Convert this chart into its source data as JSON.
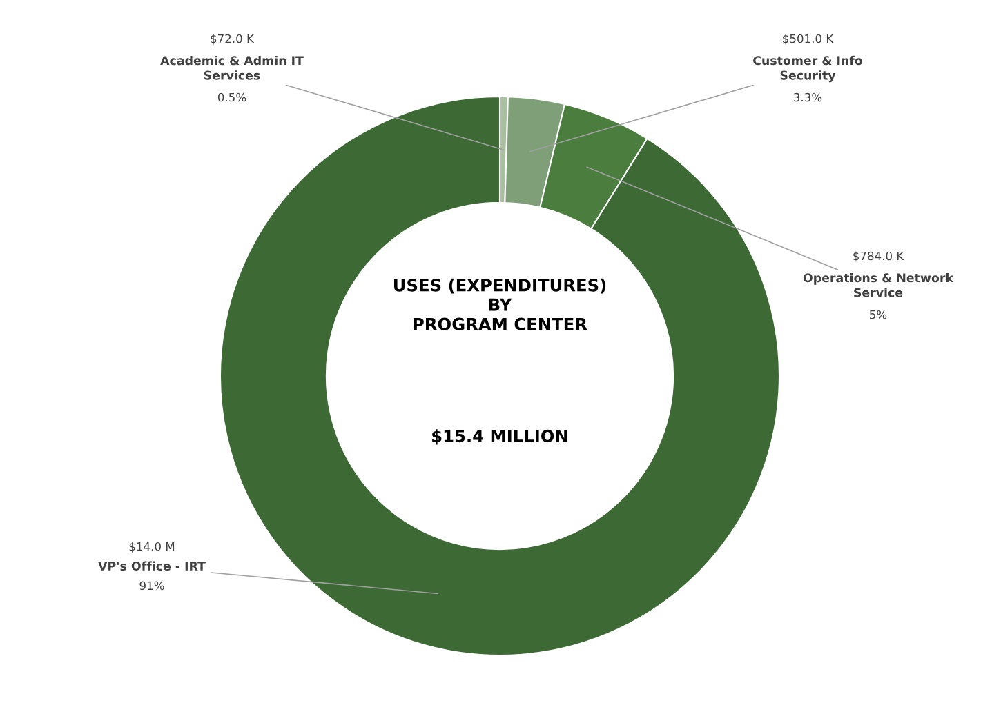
{
  "chart_data": {
    "type": "donut",
    "title": "USES (EXPENDITURES)\nBY\nPROGRAM CENTER",
    "subtitle": "$15.4 MILLION",
    "categories": [
      "Academic & Admin IT Services",
      "Customer & Info Security",
      "Operations & Network Service",
      "VP's Office - IRT"
    ],
    "values": [
      72000,
      501000,
      784000,
      14000000
    ],
    "value_labels": [
      "$72.0 K",
      "$501.0 K",
      "$784.0 K",
      "$14.0 M"
    ],
    "colors": [
      "#a8c09f",
      "#7f9f78",
      "#4a7d3e",
      "#3d6934"
    ],
    "annotations": [
      {
        "text": "0.5%",
        "x": "Academic & Admin IT Services"
      },
      {
        "text": "3.3%",
        "x": "Customer & Info Security"
      },
      {
        "text": "5%",
        "x": "Operations & Network Service"
      },
      {
        "text": "91%",
        "x": "VP's Office - IRT"
      }
    ],
    "legend": false
  }
}
